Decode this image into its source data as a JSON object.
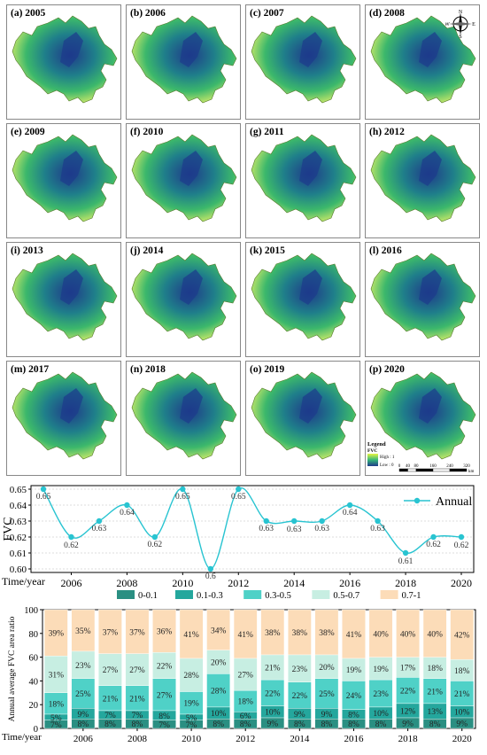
{
  "panels": [
    {
      "label": "(a) 2005"
    },
    {
      "label": "(b) 2006"
    },
    {
      "label": "(c) 2007"
    },
    {
      "label": "(d) 2008"
    },
    {
      "label": "(e) 2009"
    },
    {
      "label": "(f) 2010"
    },
    {
      "label": "(g) 2011"
    },
    {
      "label": "(h) 2012"
    },
    {
      "label": "(i) 2013"
    },
    {
      "label": "(j) 2014"
    },
    {
      "label": "(k) 2015"
    },
    {
      "label": "(l) 2016"
    },
    {
      "label": "(m) 2017"
    },
    {
      "label": "(n) 2018"
    },
    {
      "label": "(o) 2019"
    },
    {
      "label": "(p) 2020"
    }
  ],
  "compass": {
    "n": "N",
    "s": "S",
    "e": "E",
    "w": "W"
  },
  "legend": {
    "title": "Legend",
    "var": "FVC",
    "high": "High : 1",
    "low": "Low : 0",
    "color_high": "#e6f542",
    "color_mid": "#35b779",
    "color_low": "#1f3a8a"
  },
  "scalebar": {
    "ticks": [
      "0",
      "40",
      "80",
      "160",
      "240",
      "320"
    ],
    "unit": "km"
  },
  "chart_data": [
    {
      "type": "line",
      "ylabel": "FVC",
      "xlabel": "Time/year",
      "x": [
        2005,
        2006,
        2007,
        2008,
        2009,
        2010,
        2011,
        2012,
        2013,
        2014,
        2015,
        2016,
        2017,
        2018,
        2019,
        2020
      ],
      "x_tick_labels": [
        "2006",
        "2008",
        "2010",
        "2012",
        "2014",
        "2016",
        "2018",
        "2020"
      ],
      "ylim": [
        0.6,
        0.65
      ],
      "y_tick_labels": [
        "0.60",
        "0.61",
        "0.62",
        "0.63",
        "0.64",
        "0.65"
      ],
      "grid": true,
      "legend_position": "top-right",
      "series": [
        {
          "name": "Annual",
          "color": "#29c4d1",
          "values": [
            0.65,
            0.62,
            0.63,
            0.64,
            0.62,
            0.65,
            0.6,
            0.65,
            0.63,
            0.63,
            0.63,
            0.64,
            0.63,
            0.61,
            0.62,
            0.62
          ],
          "value_labels": [
            "0.65",
            "0.62",
            "0.63",
            "0.64",
            "0.62",
            "0.65",
            "0.6",
            "0.65",
            "0.63",
            "0.63",
            "0.63",
            "0.64",
            "0.63",
            "0.61",
            "0.62",
            "0.62"
          ]
        }
      ]
    },
    {
      "type": "bar",
      "stacked": true,
      "ylabel": "Annual average FVC area ratio",
      "xlabel": "Time/year",
      "categories": [
        "2005",
        "2006",
        "2007",
        "2008",
        "2009",
        "2010",
        "2011",
        "2012",
        "2013",
        "2014",
        "2015",
        "2016",
        "2017",
        "2018",
        "2019",
        "2020"
      ],
      "x_tick_labels": [
        "2006",
        "2008",
        "2010",
        "2012",
        "2014",
        "2016",
        "2018",
        "2020"
      ],
      "ylim": [
        0,
        100
      ],
      "y_tick_labels": [
        "0",
        "20",
        "40",
        "60",
        "80",
        "100"
      ],
      "legend_position": "top",
      "series": [
        {
          "name": "0-0.1",
          "color": "#2a8f82",
          "values": [
            7,
            8,
            8,
            8,
            7,
            7,
            8,
            8,
            9,
            8,
            8,
            8,
            8,
            9,
            8,
            9
          ]
        },
        {
          "name": "0.1-0.3",
          "color": "#24a79d",
          "values": [
            5,
            9,
            7,
            7,
            8,
            5,
            10,
            6,
            10,
            9,
            9,
            8,
            10,
            12,
            13,
            10
          ]
        },
        {
          "name": "0.3-0.5",
          "color": "#4fd1c7",
          "values": [
            18,
            25,
            21,
            21,
            27,
            19,
            28,
            18,
            22,
            22,
            25,
            24,
            23,
            22,
            21,
            21
          ]
        },
        {
          "name": "0.5-0.7",
          "color": "#c7eee2",
          "values": [
            31,
            23,
            27,
            27,
            22,
            28,
            20,
            27,
            21,
            23,
            20,
            19,
            19,
            17,
            18,
            18
          ]
        },
        {
          "name": "0.7-1",
          "color": "#fcdcb8",
          "values": [
            39,
            35,
            37,
            37,
            36,
            41,
            34,
            41,
            38,
            38,
            38,
            41,
            40,
            40,
            40,
            42
          ]
        }
      ]
    }
  ]
}
